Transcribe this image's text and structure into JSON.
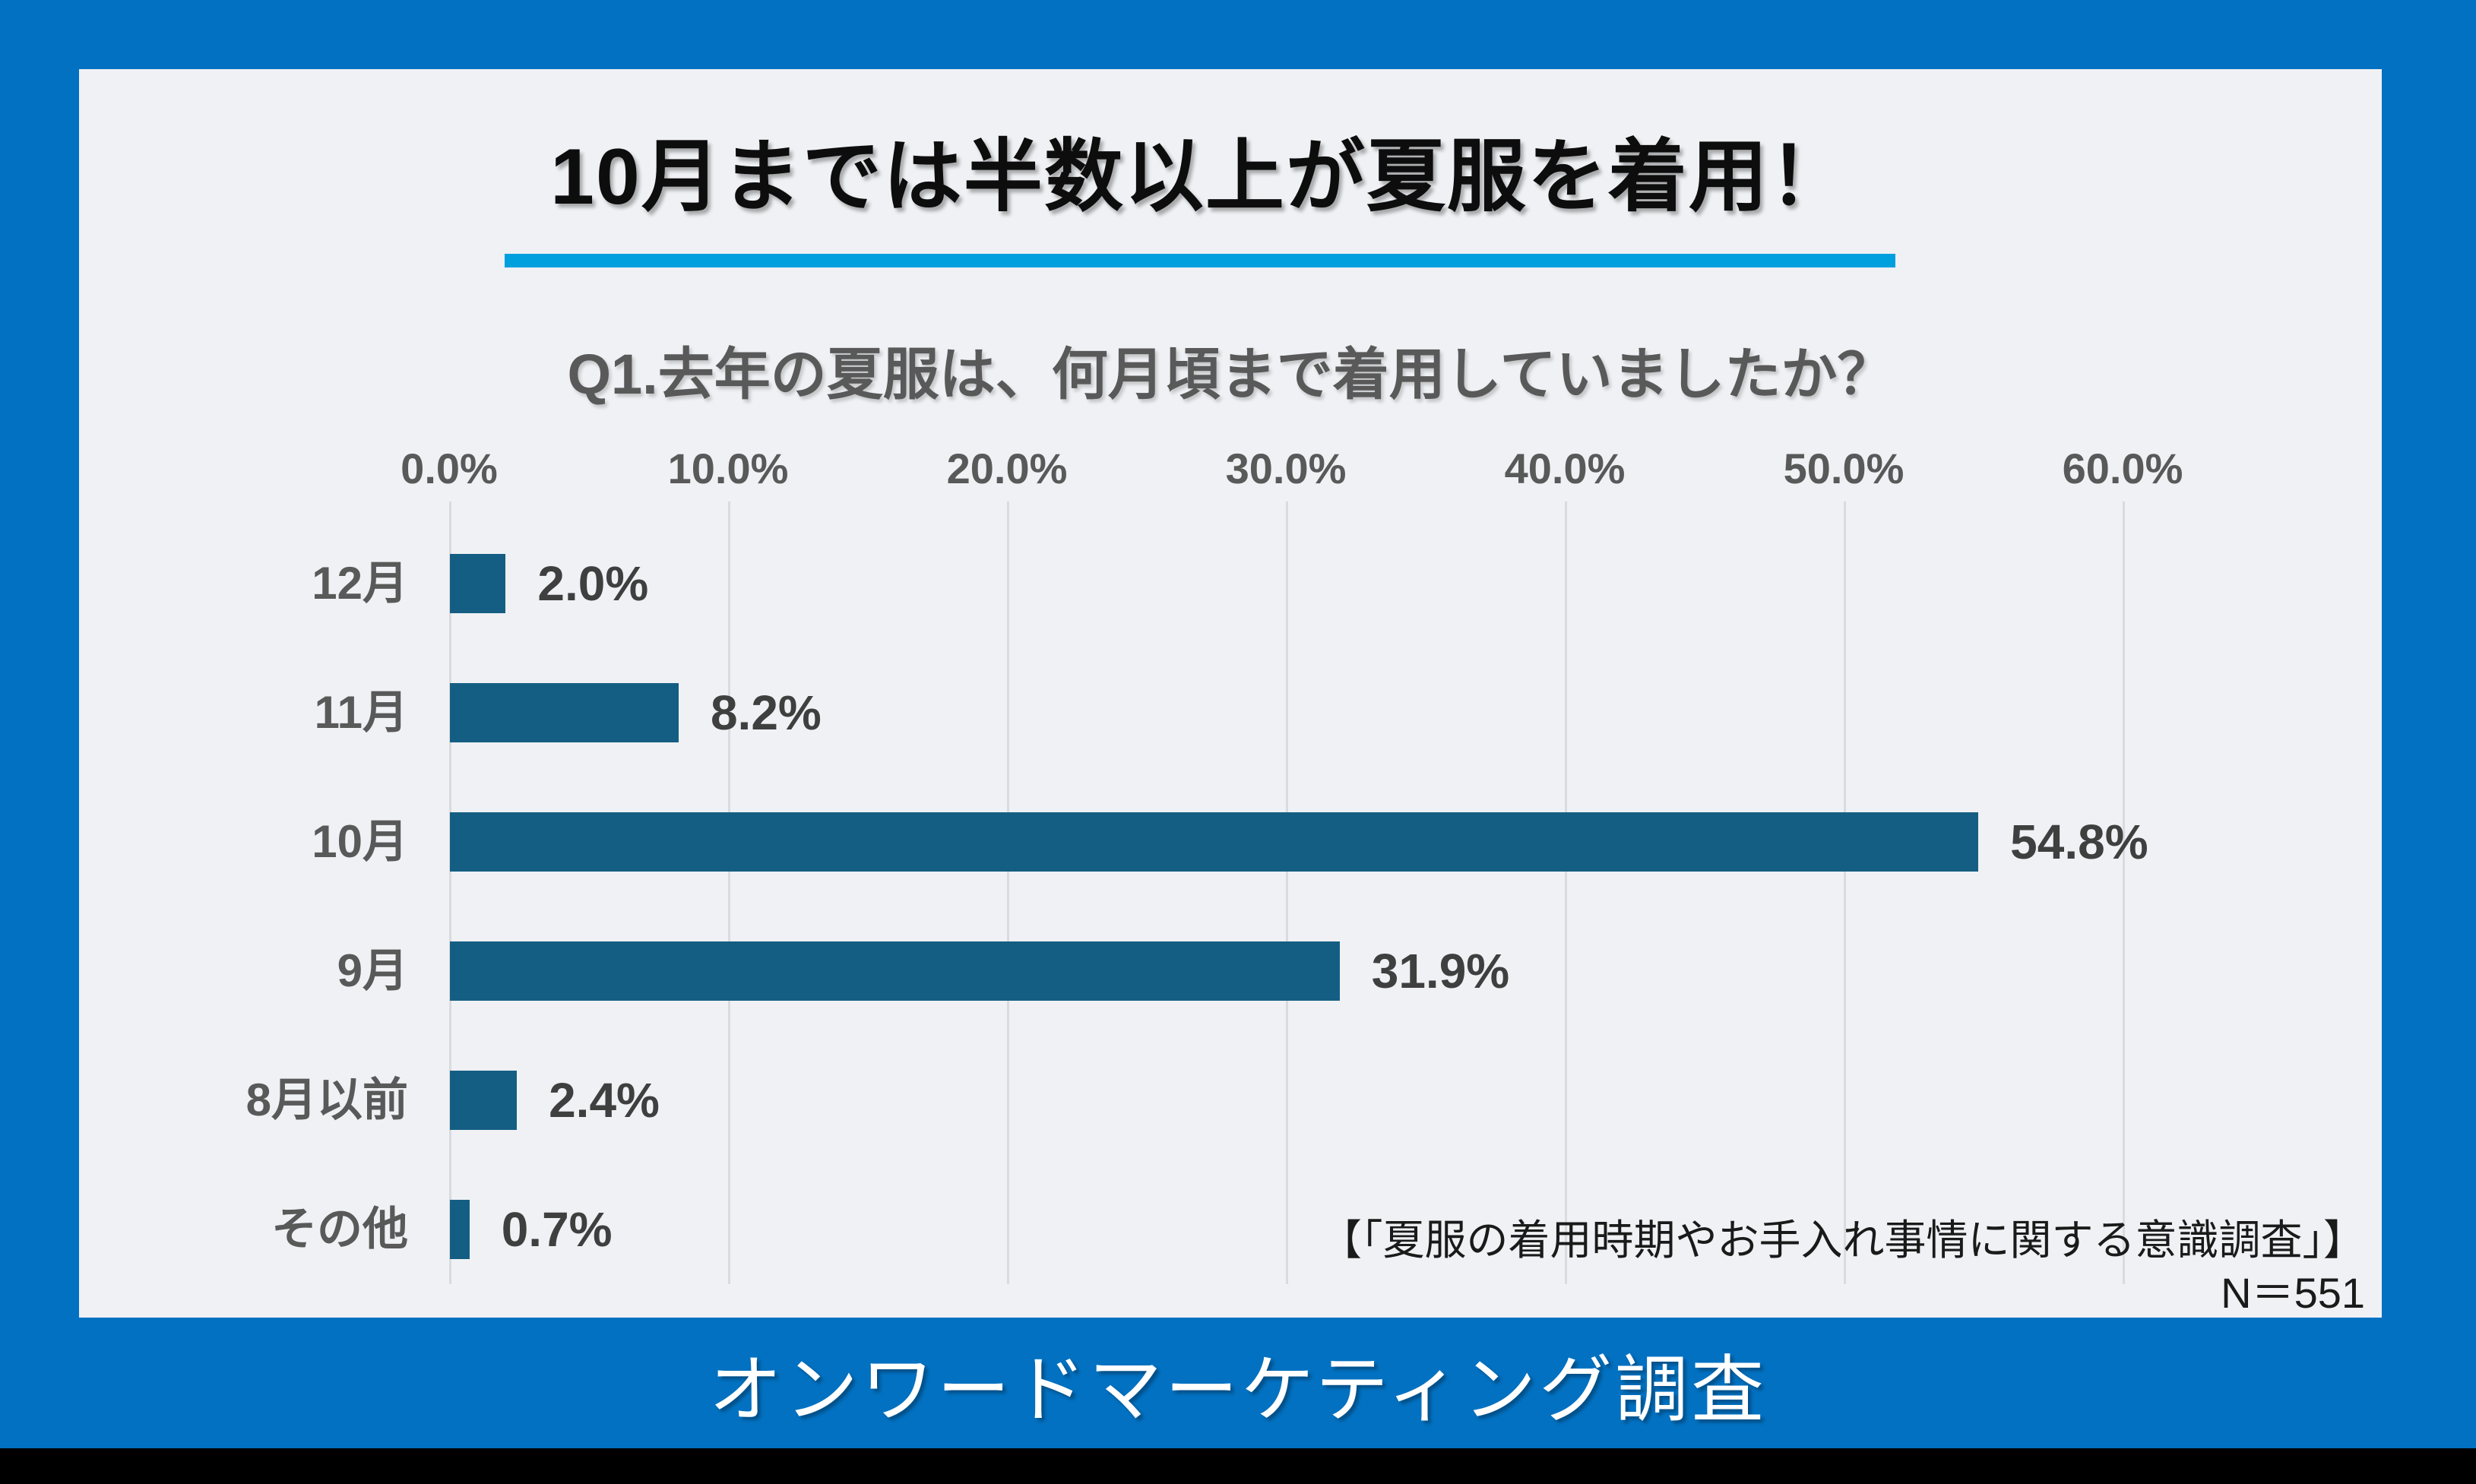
{
  "page": {
    "background_color": "#0271C1",
    "banner_text": "オンワードマーケティング調査",
    "bottom_bar_color": "#000000"
  },
  "card": {
    "background_color": "#EFF1F4",
    "title": "10月までは半数以上が夏服を着用！",
    "underline_color": "#009FDE",
    "source_note": "【「夏服の着用時期やお手入れ事情に関する意識調査」】",
    "sample_size": "N＝551"
  },
  "chart_data": {
    "type": "bar",
    "orientation": "horizontal",
    "title": "Q1.去年の夏服は、何月頃まで着用していましたか？",
    "categories": [
      "12月",
      "11月",
      "10月",
      "9月",
      "8月以前",
      "その他"
    ],
    "values": [
      2.0,
      8.2,
      54.8,
      31.9,
      2.4,
      0.7
    ],
    "value_labels": [
      "2.0%",
      "8.2%",
      "54.8%",
      "31.9%",
      "2.4%",
      "0.7%"
    ],
    "x_ticks": [
      "0.0%",
      "10.0%",
      "20.0%",
      "30.0%",
      "40.0%",
      "50.0%",
      "60.0%"
    ],
    "xlim": [
      0,
      60
    ],
    "grid": true,
    "legend": "none",
    "bar_color": "#155E83",
    "gridline_color": "#D9DBDE",
    "axis_text_color": "#595959",
    "value_text_color": "#3F3F3F"
  }
}
